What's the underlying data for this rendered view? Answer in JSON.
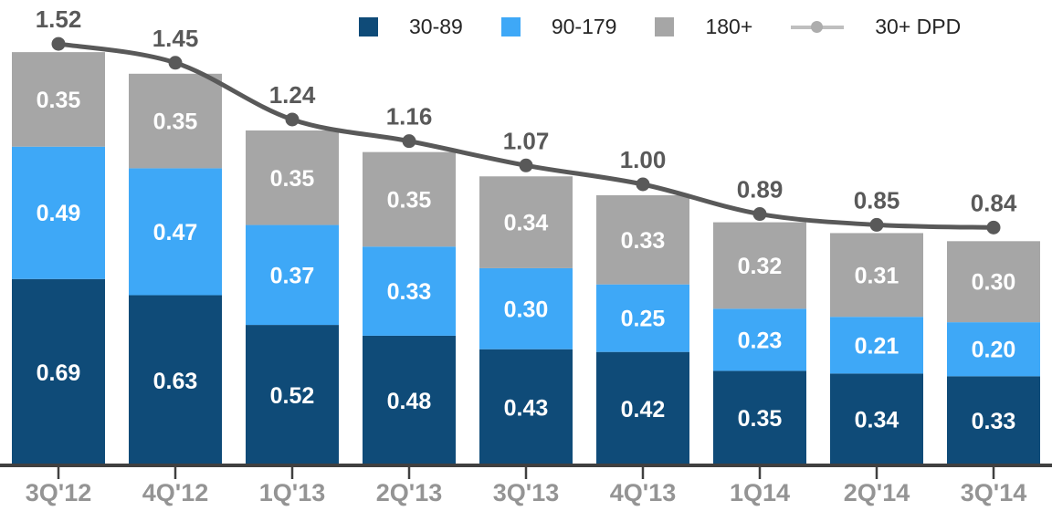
{
  "chart_data": {
    "type": "bar",
    "subtype": "stacked-bar-with-line-overlay",
    "title": "",
    "xlabel": "",
    "ylabel": "",
    "grid": false,
    "y_axis_visible": false,
    "ylim": [
      0,
      1.7
    ],
    "legend_position": "top-center",
    "categories": [
      "3Q'12",
      "4Q'12",
      "1Q'13",
      "2Q'13",
      "3Q'13",
      "4Q'13",
      "1Q14",
      "2Q'14",
      "3Q'14"
    ],
    "series": [
      {
        "name": "30-89",
        "color": "#0F4B78",
        "values": [
          0.69,
          0.63,
          0.52,
          0.48,
          0.43,
          0.42,
          0.35,
          0.34,
          0.33
        ]
      },
      {
        "name": "90-179",
        "color": "#3EA8F7",
        "values": [
          0.49,
          0.47,
          0.37,
          0.33,
          0.3,
          0.25,
          0.23,
          0.21,
          0.2
        ]
      },
      {
        "name": "180+",
        "color": "#A6A6A6",
        "values": [
          0.35,
          0.35,
          0.35,
          0.35,
          0.34,
          0.33,
          0.32,
          0.31,
          0.3
        ]
      }
    ],
    "line_series": {
      "name": "30+ DPD",
      "color": "#595959",
      "smoothed": true,
      "values": [
        1.52,
        1.45,
        1.24,
        1.16,
        1.07,
        1.0,
        0.89,
        0.85,
        0.84
      ]
    },
    "colors": {
      "axis_line": "#404040",
      "tick": "#404040",
      "category_label": "#949494",
      "total_label": "#595959",
      "segment_label": "#FFFFFF",
      "background": "#FFFFFF"
    }
  },
  "legend": {
    "items": [
      {
        "label": "30-89",
        "swatch_color": "#0F4B78",
        "type": "square"
      },
      {
        "label": "90-179",
        "swatch_color": "#3EA8F7",
        "type": "square"
      },
      {
        "label": "180+",
        "swatch_color": "#A6A6A6",
        "type": "square"
      },
      {
        "label": "30+ DPD",
        "swatch_color": "#BFBFBF",
        "marker_color": "#ADADAD",
        "type": "line-marker"
      }
    ]
  }
}
